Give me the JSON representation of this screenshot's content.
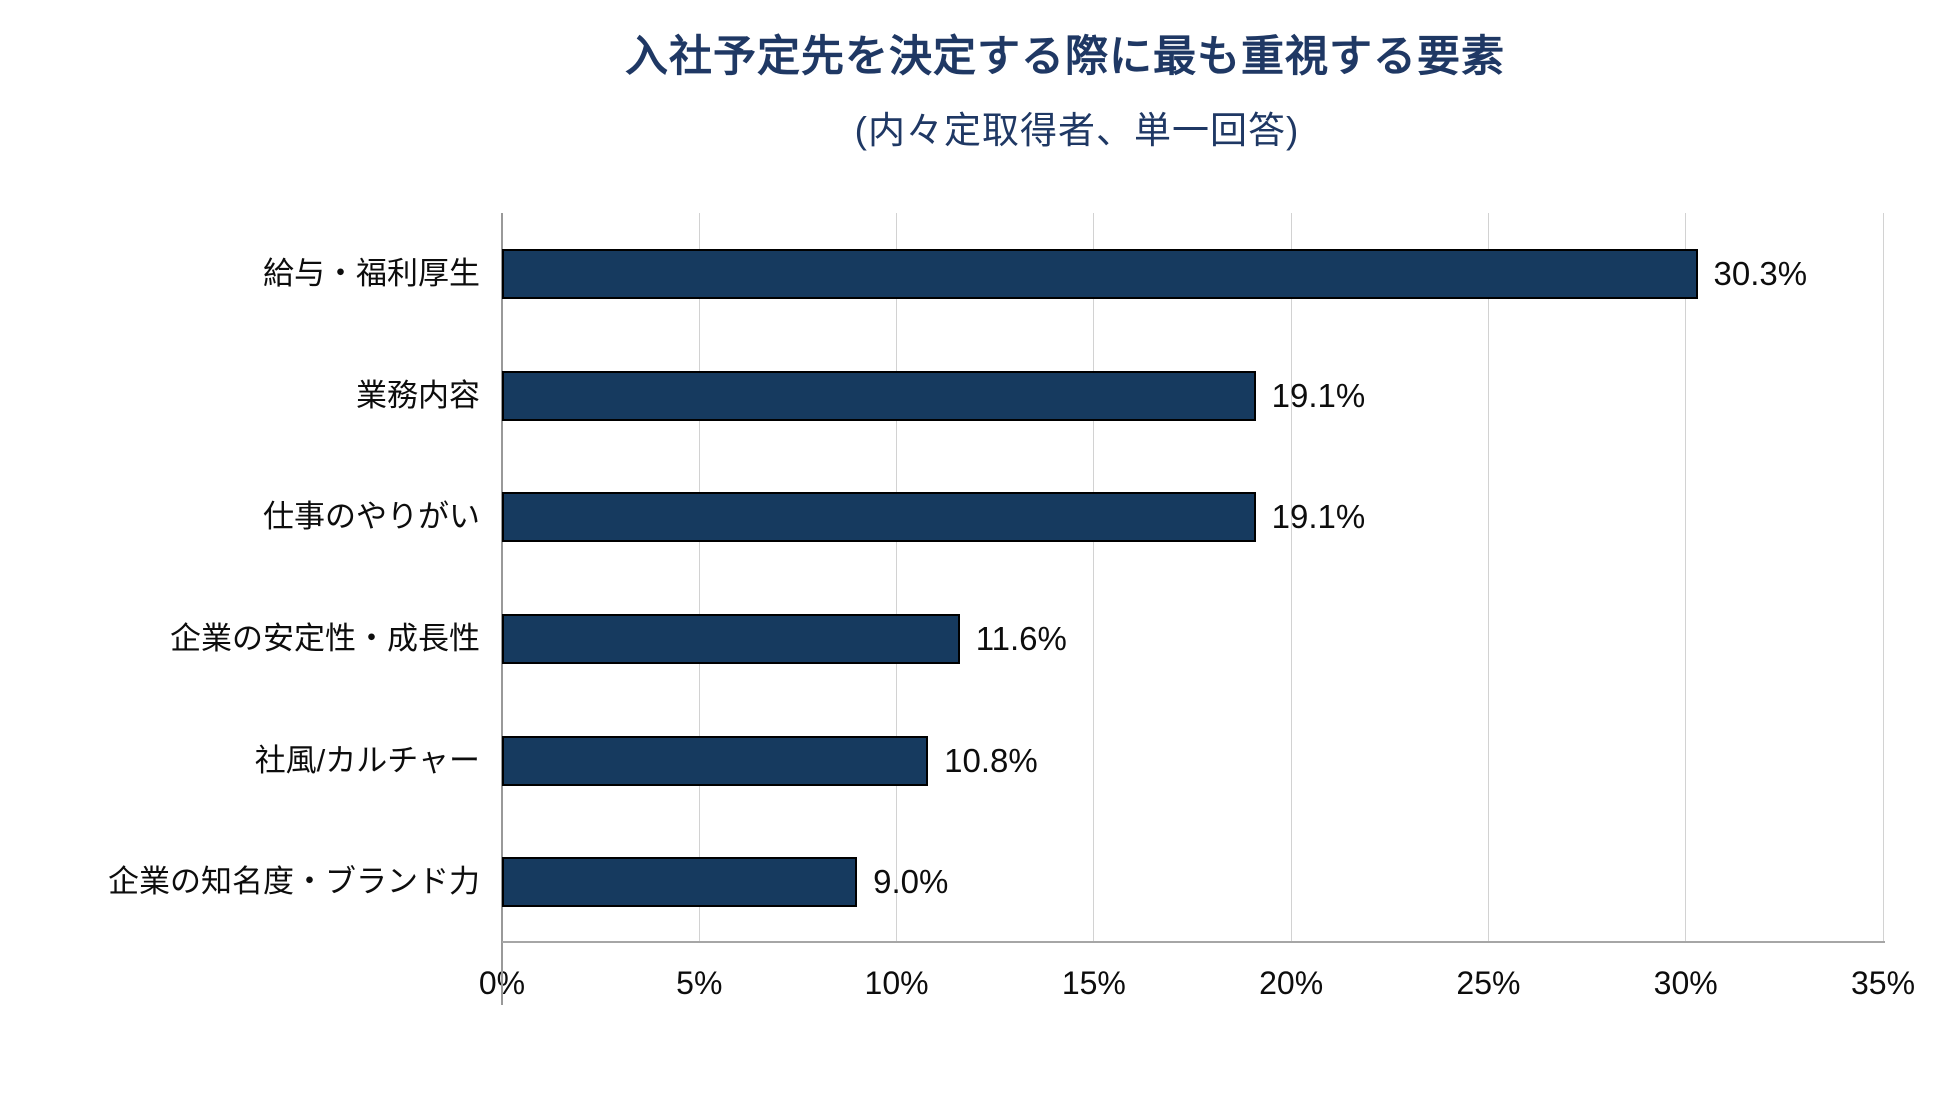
{
  "chart_data": {
    "type": "bar",
    "orientation": "horizontal",
    "title": "入社予定先を決定する際に最も重視する要素",
    "subtitle": "(内々定取得者、単一回答)",
    "categories": [
      "給与・福利厚生",
      "業務内容",
      "仕事のやりがい",
      "企業の安定性・成長性",
      "社風/カルチャー",
      "企業の知名度・ブランド力"
    ],
    "values": [
      30.3,
      19.1,
      19.1,
      11.6,
      10.8,
      9.0
    ],
    "value_labels": [
      "30.3%",
      "19.1%",
      "19.1%",
      "11.6%",
      "10.8%",
      "9.0%"
    ],
    "x_ticks": [
      "0%",
      "5%",
      "10%",
      "15%",
      "20%",
      "25%",
      "30%",
      "35%"
    ],
    "x_tick_values": [
      0,
      5,
      10,
      15,
      20,
      25,
      30,
      35
    ],
    "xlim": [
      0,
      35
    ],
    "xlabel": "",
    "ylabel": "",
    "grid": "vertical",
    "legend": "none",
    "colors": {
      "bar_fill": "#163a5f",
      "bar_border": "#000000",
      "title_text": "#1f3864",
      "subtitle_text": "#1f3864",
      "label_text": "#0d0d0d",
      "gridline": "#d2d2d2",
      "axis_line_y": "#999999",
      "axis_line_x": "#a6a6a6"
    }
  }
}
